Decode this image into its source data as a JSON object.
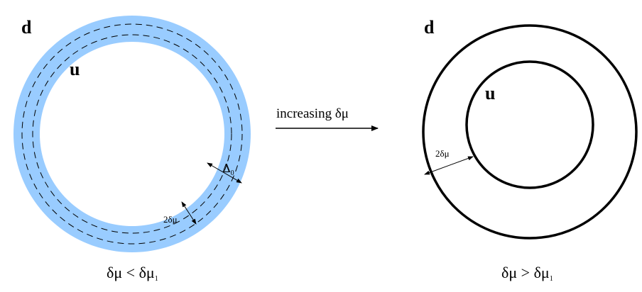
{
  "colors": {
    "band_fill": "#99ccff",
    "stroke": "#000000",
    "background": "#ffffff"
  },
  "left_panel": {
    "outer_label": "d",
    "inner_label": "u",
    "gap_label": "Δ",
    "gap_subscript": "0",
    "width_label": "2δμ",
    "caption_main": "δμ < δμ",
    "caption_subscript": "1"
  },
  "arrow": {
    "label": "increasing δμ"
  },
  "right_panel": {
    "outer_label": "d",
    "inner_label": "u",
    "width_label": "2δμ",
    "caption_main": "δμ > δμ",
    "caption_subscript": "1"
  }
}
